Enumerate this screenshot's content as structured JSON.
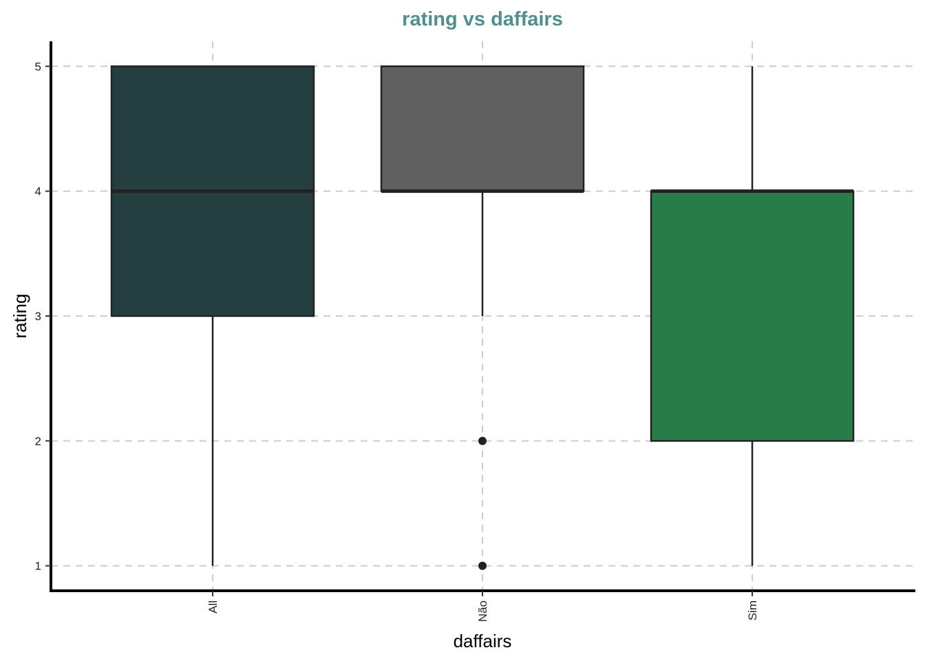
{
  "chart_data": {
    "type": "boxplot",
    "title": "rating vs daffairs",
    "title_color": "#4f8f8f",
    "xlabel": "daffairs",
    "ylabel": "rating",
    "ylim": [
      0.8,
      5.2
    ],
    "yticks": [
      1,
      2,
      3,
      4,
      5
    ],
    "grid": true,
    "legend": "none",
    "categories": [
      "All",
      "Não",
      "Sim"
    ],
    "boxes": [
      {
        "category": "All",
        "whisker_low": 1,
        "q1": 3,
        "median": 4,
        "q3": 5,
        "whisker_high": 5,
        "outliers": [],
        "color": "#253e3f"
      },
      {
        "category": "Não",
        "whisker_low": 3,
        "q1": 4,
        "median": 4,
        "q3": 5,
        "whisker_high": 5,
        "outliers": [
          1,
          2
        ],
        "color": "#606060"
      },
      {
        "category": "Sim",
        "whisker_low": 1,
        "q1": 2,
        "median": 4,
        "q3": 4,
        "whisker_high": 5,
        "outliers": [],
        "color": "#287c47"
      }
    ]
  }
}
